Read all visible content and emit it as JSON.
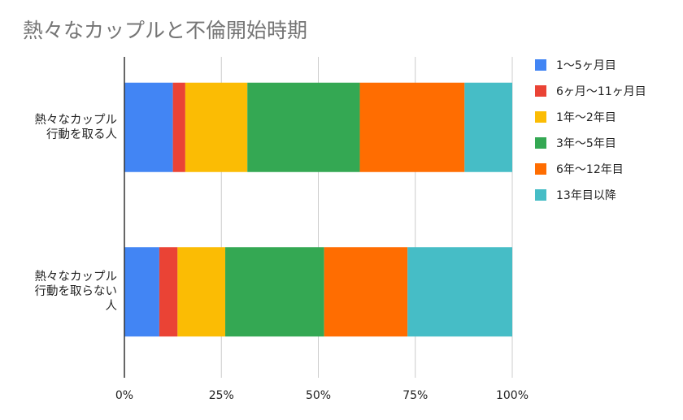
{
  "chart_data": {
    "type": "bar",
    "orientation": "horizontal",
    "stacked": "percent",
    "title": "熱々なカップルと不倫開始時期",
    "categories": [
      [
        "熱々なカップル",
        "行動を取る人"
      ],
      [
        "熱々なカップル",
        "行動を取らない",
        "人"
      ]
    ],
    "series": [
      {
        "name": "1〜5ヶ月目",
        "color": "#4285f4",
        "values": [
          12.5,
          9.0
        ]
      },
      {
        "name": "6ヶ月〜11ヶ月目",
        "color": "#ea4335",
        "values": [
          3.2,
          4.7
        ]
      },
      {
        "name": "1年〜2年目",
        "color": "#fbbc04",
        "values": [
          16.0,
          12.3
        ]
      },
      {
        "name": "3年〜5年目",
        "color": "#34a853",
        "values": [
          29.0,
          25.5
        ]
      },
      {
        "name": "6年〜12年目",
        "color": "#ff6d01",
        "values": [
          27.0,
          21.5
        ]
      },
      {
        "name": "13年目以降",
        "color": "#46bdc6",
        "values": [
          12.3,
          27.0
        ]
      }
    ],
    "x_ticks": [
      "0%",
      "25%",
      "50%",
      "75%",
      "100%"
    ],
    "xlim": [
      0,
      100
    ],
    "grid": true,
    "legend_position": "right"
  }
}
